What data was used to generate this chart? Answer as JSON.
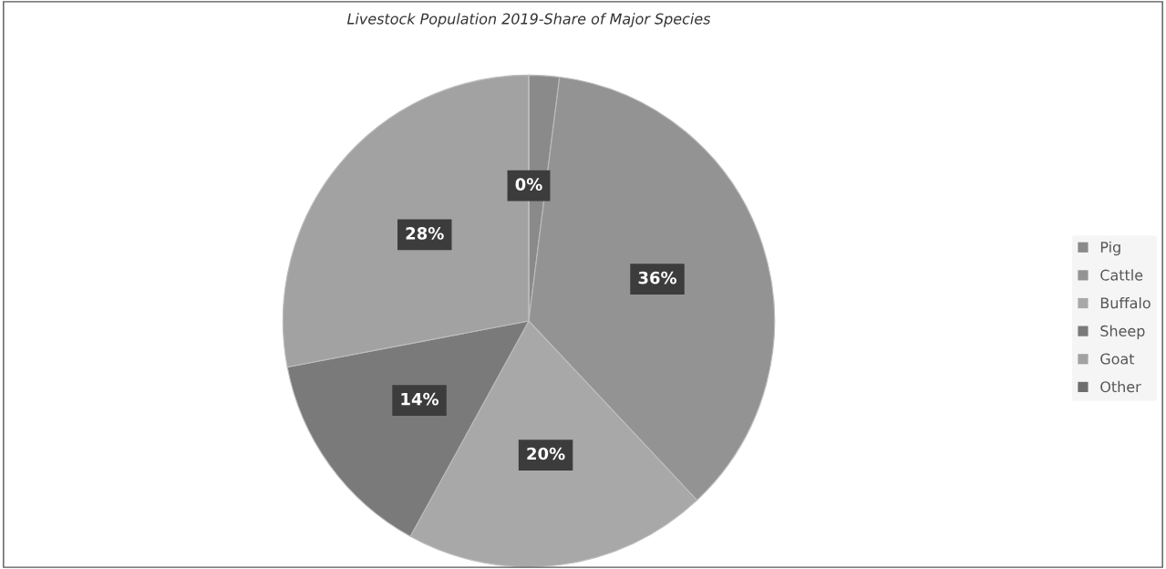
{
  "chart_data": {
    "type": "pie",
    "title": "Livestock Population 2019-Share of Major Species",
    "categories": [
      "Pig",
      "Cattle",
      "Buffalo",
      "Sheep",
      "Goat",
      "Other"
    ],
    "values": [
      2,
      36,
      20,
      14,
      28,
      0
    ],
    "value_labels": [
      null,
      "36%",
      "20%",
      "14%",
      "28%",
      "0%"
    ],
    "colors": [
      "#8a8a8a",
      "#939393",
      "#a8a8a8",
      "#7a7a7a",
      "#a2a2a2",
      "#6e6e6e"
    ],
    "legend": "right"
  }
}
